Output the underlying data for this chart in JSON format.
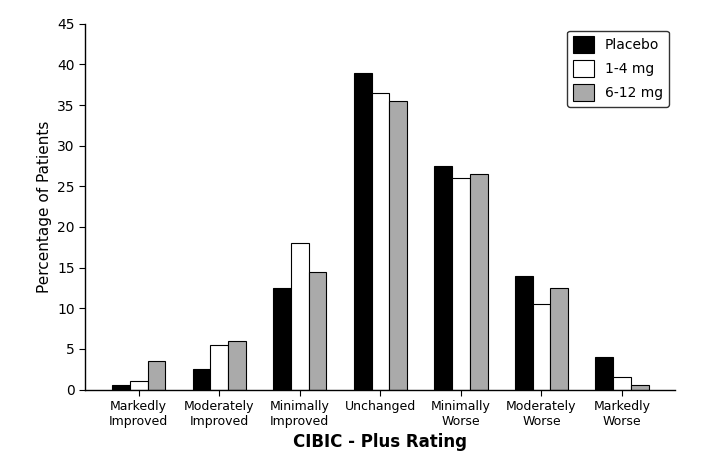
{
  "categories": [
    "Markedly\nImproved",
    "Moderately\nImproved",
    "Minimally\nImproved",
    "Unchanged",
    "Minimally\nWorse",
    "Moderately\nWorse",
    "Markedly\nWorse"
  ],
  "series": {
    "Placebo": [
      0.5,
      2.5,
      12.5,
      39.0,
      27.5,
      14.0,
      4.0
    ],
    "1-4 mg": [
      1.0,
      5.5,
      18.0,
      36.5,
      26.0,
      10.5,
      1.5
    ],
    "6-12 mg": [
      3.5,
      6.0,
      14.5,
      35.5,
      26.5,
      12.5,
      0.5
    ]
  },
  "colors": {
    "Placebo": "#000000",
    "1-4 mg": "#ffffff",
    "6-12 mg": "#aaaaaa"
  },
  "bar_edge_color": "#000000",
  "ylabel": "Percentage of Patients",
  "xlabel": "CIBIC - Plus Rating",
  "ylim": [
    0,
    45
  ],
  "yticks": [
    0,
    5,
    10,
    15,
    20,
    25,
    30,
    35,
    40,
    45
  ],
  "legend_loc": "upper right",
  "bar_width": 0.22,
  "figsize": [
    7.11,
    4.75
  ],
  "dpi": 100,
  "background_color": "#ffffff"
}
